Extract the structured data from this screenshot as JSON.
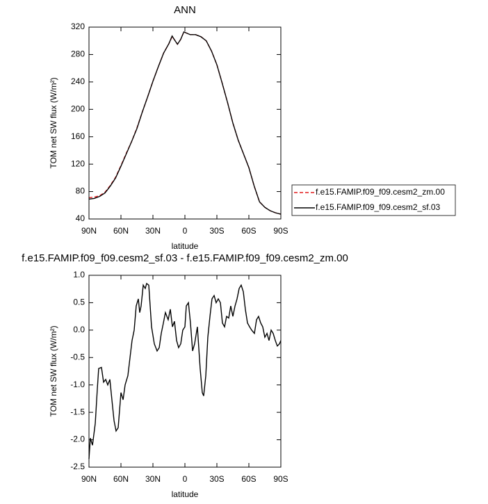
{
  "chart_data": [
    {
      "type": "line",
      "title": "ANN",
      "xlabel": "latitude",
      "ylabel": "TOM net SW flux (W/m²)",
      "x": [
        90,
        85,
        80,
        75,
        70,
        65,
        60,
        55,
        50,
        45,
        40,
        35,
        30,
        25,
        20,
        15,
        12,
        10,
        7,
        4,
        1,
        -2,
        -5,
        -10,
        -15,
        -20,
        -25,
        -30,
        -35,
        -40,
        -45,
        -50,
        -55,
        -60,
        -65,
        -70,
        -75,
        -80,
        -85,
        -90
      ],
      "series": [
        {
          "name": "f.e15.FAMIP.f09_f09.cesm2_zm.00",
          "color": "#e41a1c",
          "dashed": true,
          "values": [
            71,
            72,
            74,
            79,
            89,
            101,
            118,
            136,
            153,
            173,
            196,
            218,
            241,
            262,
            282,
            296,
            306,
            302,
            295,
            302,
            313,
            311,
            309,
            309,
            306,
            300,
            285,
            265,
            238,
            210,
            180,
            155,
            135,
            115,
            88,
            65,
            57,
            52,
            49,
            47
          ]
        },
        {
          "name": "f.e15.FAMIP.f09_f09.cesm2_sf.03",
          "color": "#000000",
          "dashed": false,
          "values": [
            69,
            70,
            73,
            78,
            88,
            100,
            117,
            135,
            153,
            172,
            196,
            218,
            241,
            262,
            282,
            296,
            307,
            302,
            295,
            302,
            313,
            311,
            309,
            309,
            306,
            300,
            285,
            265,
            238,
            210,
            180,
            155,
            135,
            115,
            88,
            65,
            57,
            52,
            49,
            47
          ]
        }
      ],
      "xlim": [
        90,
        -90
      ],
      "xticks": [
        {
          "value": 90,
          "label": "90N"
        },
        {
          "value": 60,
          "label": "60N"
        },
        {
          "value": 30,
          "label": "30N"
        },
        0,
        {
          "value": -30,
          "label": "30S"
        },
        {
          "value": -60,
          "label": "60S"
        },
        {
          "value": -90,
          "label": "90S"
        }
      ],
      "ylim": [
        40,
        320
      ],
      "yticks": [
        40,
        80,
        120,
        160,
        200,
        240,
        280,
        320
      ],
      "legend": "right"
    },
    {
      "type": "line",
      "title": "f.e15.FAMIP.f09_f09.cesm2_sf.03 - f.e15.FAMIP.f09_f09.cesm2_zm.00",
      "xlabel": "latitude",
      "ylabel": "TOM net SW flux (W/m²)",
      "x": [
        90,
        88.7,
        86.7,
        84.1,
        82.2,
        80.9,
        78.3,
        76.3,
        74.3,
        72.4,
        70.4,
        68.5,
        66.5,
        64.6,
        62.6,
        60,
        58,
        56.1,
        53.5,
        51.5,
        49.6,
        47.6,
        45.7,
        43.7,
        42.4,
        41.1,
        39.1,
        37.2,
        35.9,
        33.9,
        32.6,
        31.3,
        28.7,
        26.1,
        24.1,
        22.2,
        20.2,
        18.3,
        15.7,
        13.7,
        11.7,
        9.8,
        7.8,
        5.9,
        3.9,
        2,
        0,
        -1.3,
        -3.3,
        -5.2,
        -7.2,
        -9.1,
        -11.7,
        -14.3,
        -16.3,
        -17.6,
        -19.6,
        -21.5,
        -23.5,
        -25.4,
        -27.4,
        -29.3,
        -31.3,
        -33.3,
        -35.2,
        -37.2,
        -39.1,
        -41.1,
        -43,
        -45,
        -47,
        -48.9,
        -50.9,
        -52.8,
        -54.8,
        -56.7,
        -58.7,
        -60.7,
        -62.6,
        -65.2,
        -67.2,
        -69.1,
        -71.1,
        -73,
        -75,
        -77,
        -78.9,
        -80.9,
        -82.8,
        -84.8,
        -86.7,
        -88.7,
        -90
      ],
      "series": [
        {
          "color": "#000000",
          "values": [
            -2.35,
            -1.97,
            -2.1,
            -1.7,
            -1.08,
            -0.7,
            -0.68,
            -0.95,
            -0.9,
            -1.0,
            -0.9,
            -1.27,
            -1.65,
            -1.84,
            -1.78,
            -1.14,
            -1.27,
            -1.0,
            -0.83,
            -0.5,
            -0.19,
            0.0,
            0.44,
            0.57,
            0.32,
            0.44,
            0.82,
            0.76,
            0.85,
            0.82,
            0.44,
            0.06,
            -0.25,
            -0.38,
            -0.32,
            -0.06,
            0.13,
            0.32,
            0.19,
            0.38,
            0.06,
            0.16,
            -0.19,
            -0.32,
            -0.25,
            0.0,
            0.06,
            0.44,
            0.5,
            0.13,
            -0.38,
            -0.25,
            0.06,
            -0.7,
            -1.14,
            -1.2,
            -0.83,
            -0.13,
            0.25,
            0.57,
            0.63,
            0.5,
            0.57,
            0.5,
            0.13,
            0.06,
            0.25,
            0.22,
            0.44,
            0.25,
            0.44,
            0.57,
            0.76,
            0.82,
            0.7,
            0.38,
            0.13,
            0.06,
            0.0,
            -0.06,
            0.19,
            0.25,
            0.13,
            0.06,
            -0.13,
            -0.06,
            -0.19,
            0.0,
            -0.06,
            -0.19,
            -0.29,
            -0.25,
            -0.19
          ]
        }
      ],
      "xlim": [
        90,
        -90
      ],
      "xticks": [
        {
          "value": 90,
          "label": "90N"
        },
        {
          "value": 60,
          "label": "60N"
        },
        {
          "value": 30,
          "label": "30N"
        },
        0,
        {
          "value": -30,
          "label": "30S"
        },
        {
          "value": -60,
          "label": "60S"
        },
        {
          "value": -90,
          "label": "90S"
        }
      ],
      "ylim": [
        -2.5,
        1
      ],
      "yticks": [
        -2.5,
        {
          "value": -2,
          "label": "-2.0"
        },
        -1.5,
        {
          "value": -1,
          "label": "-1.0"
        },
        -0.5,
        {
          "value": 0,
          "label": "0.0"
        },
        0.5,
        {
          "value": 1,
          "label": "1.0"
        }
      ]
    }
  ]
}
